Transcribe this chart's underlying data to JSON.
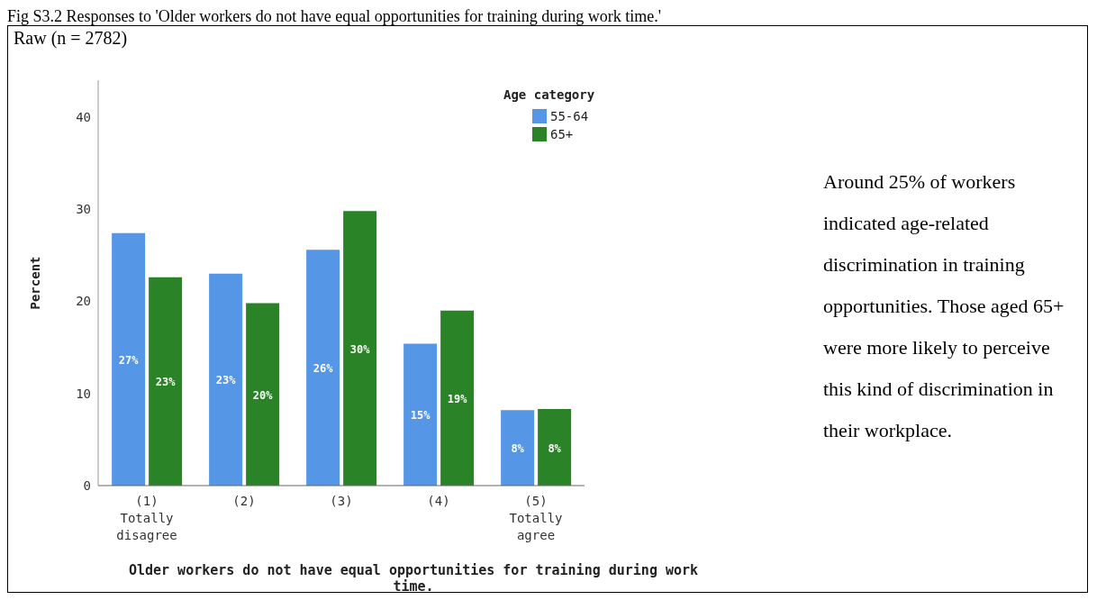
{
  "chart_data": {
    "type": "bar",
    "title": "Fig S3.2 Responses to 'Older workers do not have equal opportunities for training during work time.'",
    "subtitle": "Raw (n = 2782)",
    "xlabel": "Older workers do not have equal opportunities for training during work time.",
    "ylabel": "Percent",
    "legend_title": "Age category",
    "categories": [
      "(1) Totally disagree",
      "(2)",
      "(3)",
      "(4)",
      "(5) Totally agree"
    ],
    "series": [
      {
        "name": "55-64",
        "color": "#5596e6",
        "values": [
          27.4,
          23.0,
          25.6,
          15.4,
          8.2
        ],
        "value_labels": [
          "27%",
          "23%",
          "26%",
          "15%",
          "8%"
        ]
      },
      {
        "name": "65+",
        "color": "#2a8427",
        "values": [
          22.6,
          19.8,
          29.8,
          19.0,
          8.3
        ],
        "value_labels": [
          "23%",
          "20%",
          "30%",
          "19%",
          "8%"
        ]
      }
    ],
    "ylim": [
      0,
      44
    ],
    "yticks": [
      0,
      10,
      20,
      30,
      40
    ],
    "grid": false,
    "legend": "top right",
    "annotations": [
      "Around 25% of workers indicated age-related discrimination in training opportunities. Those aged 65+ were more likely to perceive this kind of discrimination in their workplace."
    ]
  }
}
